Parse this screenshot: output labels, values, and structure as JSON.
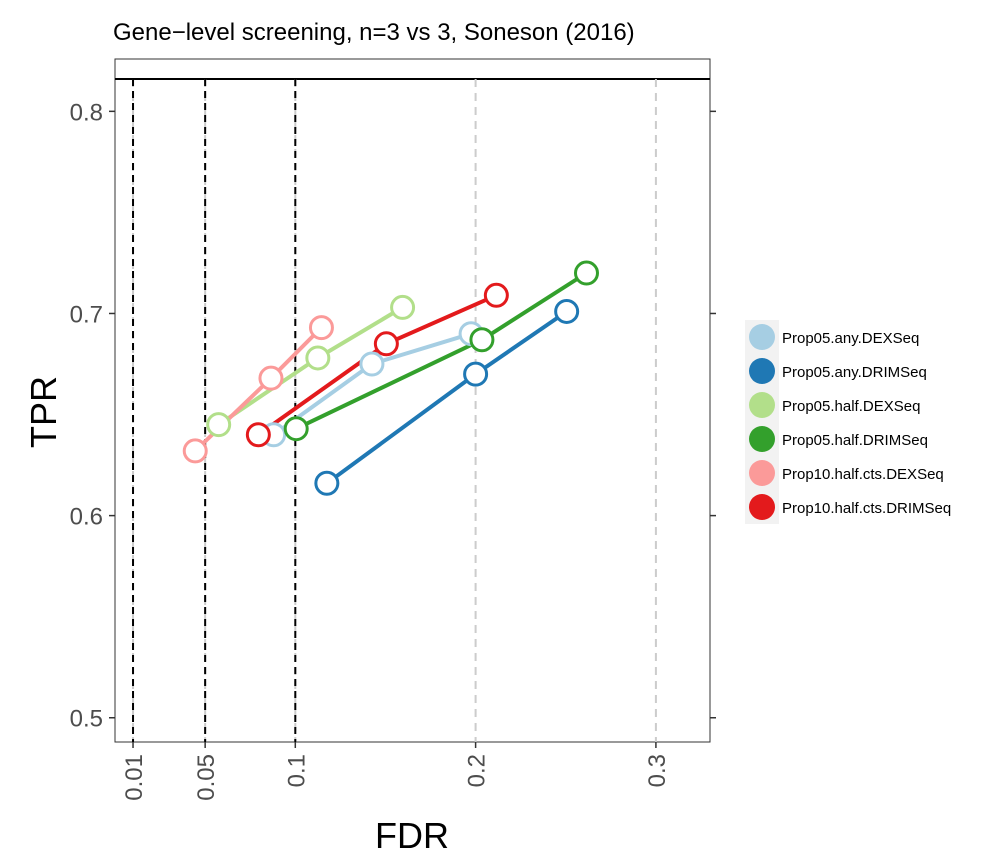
{
  "chart_data": {
    "type": "line",
    "title": "Gene−level screening, n=3 vs 3, Soneson (2016)",
    "xlabel": "FDR",
    "ylabel": "TPR",
    "xlim": [
      0.0,
      0.33
    ],
    "ylim": [
      0.488,
      0.816
    ],
    "x_ticks": [
      {
        "value": 0.01,
        "label": "0.01"
      },
      {
        "value": 0.05,
        "label": "0.05"
      },
      {
        "value": 0.1,
        "label": "0.1"
      },
      {
        "value": 0.2,
        "label": "0.2"
      },
      {
        "value": 0.3,
        "label": "0.3"
      }
    ],
    "y_ticks": [
      {
        "value": 0.5,
        "label": "0.5"
      },
      {
        "value": 0.6,
        "label": "0.6"
      },
      {
        "value": 0.7,
        "label": "0.7"
      },
      {
        "value": 0.8,
        "label": "0.8"
      }
    ],
    "threshold_lines": [
      0.01,
      0.05,
      0.1
    ],
    "grid": "vertical dashed at x ticks",
    "legend_position": "right",
    "series": [
      {
        "name": "Prop05.any.DEXSeq",
        "color": "#a6cee3",
        "points": [
          [
            0.088,
            0.64
          ],
          [
            0.1425,
            0.675
          ],
          [
            0.1975,
            0.69
          ]
        ]
      },
      {
        "name": "Prop05.any.DRIMSeq",
        "color": "#1f78b4",
        "points": [
          [
            0.1175,
            0.616
          ],
          [
            0.2,
            0.67
          ],
          [
            0.2505,
            0.701
          ]
        ]
      },
      {
        "name": "Prop05.half.DEXSeq",
        "color": "#b2df8a",
        "points": [
          [
            0.0575,
            0.645
          ],
          [
            0.1125,
            0.678
          ],
          [
            0.1595,
            0.703
          ]
        ]
      },
      {
        "name": "Prop05.half.DRIMSeq",
        "color": "#33a02c",
        "points": [
          [
            0.1005,
            0.643
          ],
          [
            0.2035,
            0.687
          ],
          [
            0.2615,
            0.72
          ]
        ]
      },
      {
        "name": "Prop10.half.cts.DEXSeq",
        "color": "#fb9a99",
        "points": [
          [
            0.0445,
            0.632
          ],
          [
            0.0865,
            0.668
          ],
          [
            0.1145,
            0.693
          ]
        ]
      },
      {
        "name": "Prop10.half.cts.DRIMSeq",
        "color": "#e31a1c",
        "points": [
          [
            0.0795,
            0.64
          ],
          [
            0.1505,
            0.685
          ],
          [
            0.2115,
            0.709
          ]
        ]
      }
    ]
  }
}
